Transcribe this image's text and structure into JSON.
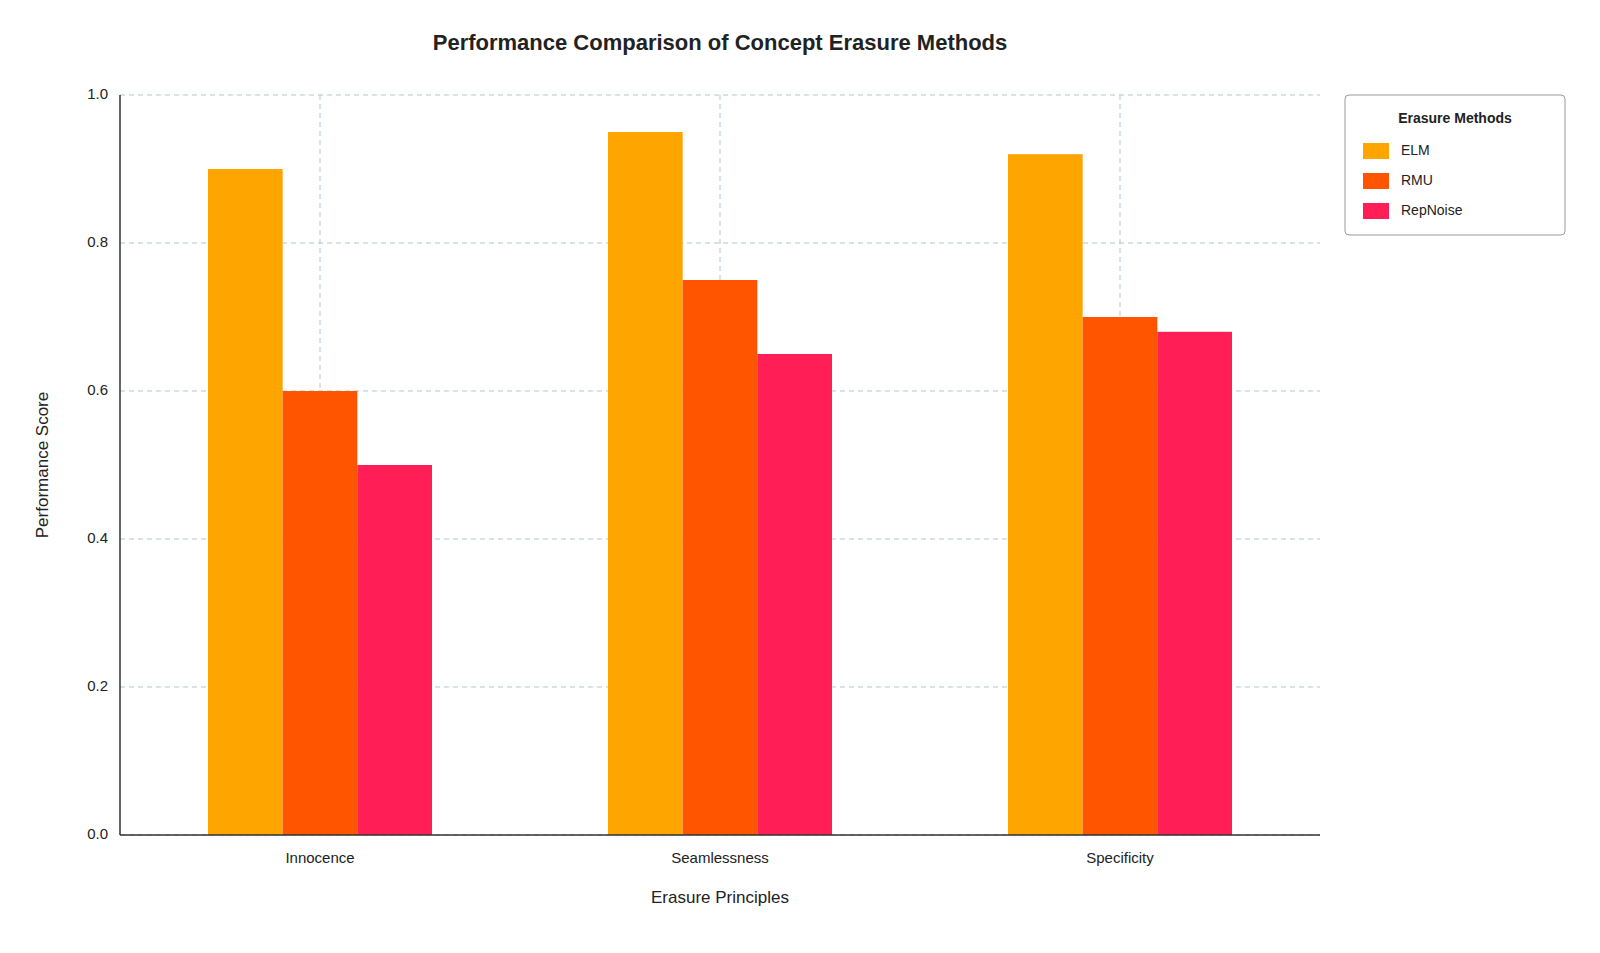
{
  "chart_data": {
    "type": "bar",
    "title": "Performance Comparison of Concept Erasure Methods",
    "x_label": "Erasure Principles",
    "y_label": "Performance Score",
    "legend_title": "Erasure Methods",
    "categories": [
      "Innocence",
      "Seamlessness",
      "Specificity"
    ],
    "series": [
      {
        "name": "ELM",
        "color": "#FFA500",
        "values": [
          0.9,
          0.95,
          0.92
        ]
      },
      {
        "name": "RMU",
        "color": "#FF5500",
        "values": [
          0.6,
          0.75,
          0.7
        ]
      },
      {
        "name": "RepNoise",
        "color": "#FF1E56",
        "values": [
          0.5,
          0.65,
          0.68
        ]
      }
    ],
    "ylim": [
      0.0,
      1.0
    ],
    "yticks": [
      {
        "value": 0.0,
        "label": "0.0"
      },
      0.2,
      0.4,
      0.6,
      0.8,
      {
        "value": 1.0,
        "label": "1.0"
      }
    ],
    "grid": true,
    "legend": "upper right"
  }
}
